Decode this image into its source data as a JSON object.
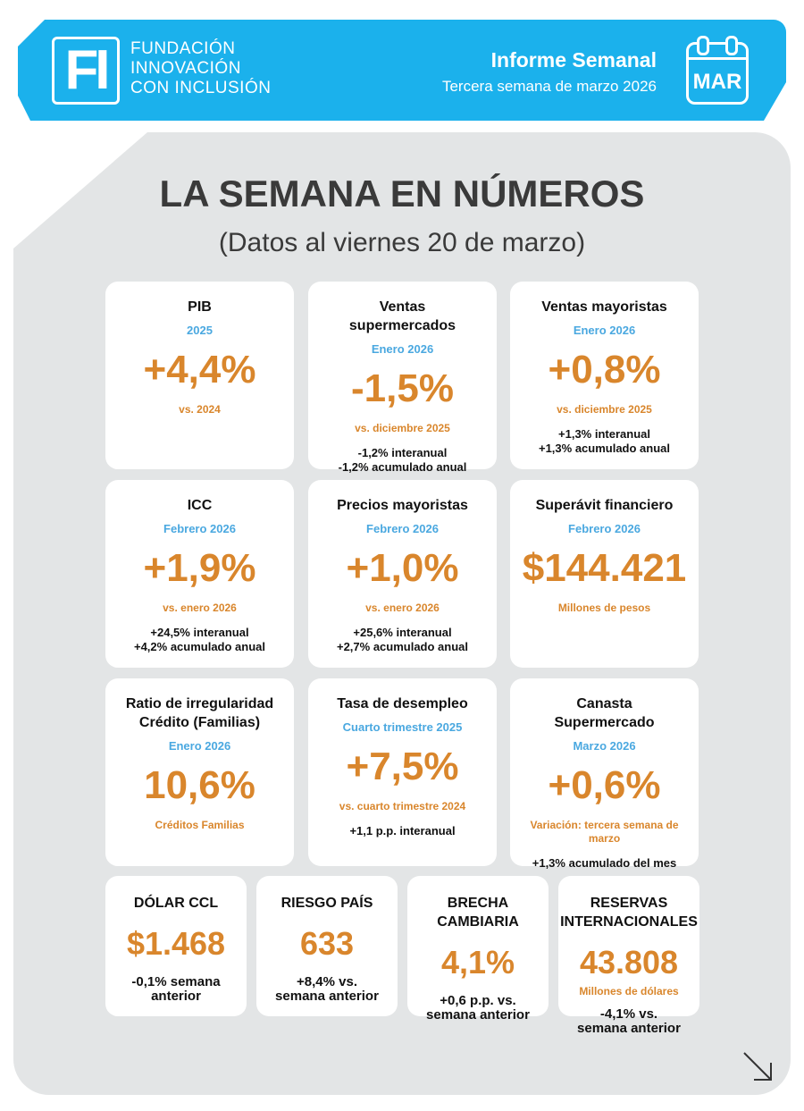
{
  "header": {
    "org_lines": [
      "FUNDACIÓN",
      "INNOVACIÓN",
      "CON INCLUSIÓN"
    ],
    "logo_text": "FI",
    "report_title": "Informe Semanal",
    "report_subtitle": "Tercera semana de marzo 2026",
    "calendar_month": "MAR",
    "brand_color": "#1bb1ec"
  },
  "main": {
    "title": "LA SEMANA EN NÚMEROS",
    "subtitle": "(Datos al viernes 20 de marzo)"
  },
  "colors": {
    "value": "#d9862c",
    "period": "#4aa8e0",
    "panel": "#e3e5e6"
  },
  "cards": [
    {
      "title": "PIB",
      "period": "2025",
      "value": "+4,4%",
      "note": "vs. 2024",
      "extra": []
    },
    {
      "title": "Ventas supermercados",
      "period": "Enero 2026",
      "value": "-1,5%",
      "note": "vs. diciembre 2025",
      "extra": [
        "-1,2% interanual",
        "-1,2% acumulado anual"
      ]
    },
    {
      "title": "Ventas mayoristas",
      "period": "Enero 2026",
      "value": "+0,8%",
      "note": "vs. diciembre 2025",
      "extra": [
        "+1,3% interanual",
        "+1,3% acumulado anual"
      ]
    },
    {
      "title": "ICC",
      "period": "Febrero 2026",
      "value": "+1,9%",
      "note": "vs. enero 2026",
      "extra": [
        "+24,5% interanual",
        "+4,2% acumulado anual"
      ]
    },
    {
      "title": "Precios mayoristas",
      "period": "Febrero 2026",
      "value": "+1,0%",
      "note": "vs. enero 2026",
      "extra": [
        "+25,6% interanual",
        "+2,7% acumulado anual"
      ]
    },
    {
      "title": "Superávit financiero",
      "period": "Febrero 2026",
      "value": "$144.421",
      "note": "Millones de pesos",
      "extra": []
    },
    {
      "title": "Ratio de irregularidad Crédito (Familias)",
      "period": "Enero 2026",
      "value": "10,6%",
      "note": "Créditos Familias",
      "extra": []
    },
    {
      "title": "Tasa de desempleo",
      "period": "Cuarto trimestre 2025",
      "value": "+7,5%",
      "note": "vs. cuarto trimestre 2024",
      "extra": [
        "+1,1 p.p. interanual"
      ]
    },
    {
      "title": "Canasta Supermercado",
      "period": "Marzo 2026",
      "value": "+0,6%",
      "note": "Variación: tercera semana de marzo",
      "extra": [
        "+1,3% acumulado del mes"
      ]
    }
  ],
  "small_cards": [
    {
      "title": "DÓLAR CCL",
      "value": "$1.468",
      "note": "",
      "extra": [
        "-0,1% semana anterior"
      ]
    },
    {
      "title": "RIESGO PAÍS",
      "value": "633",
      "note": "",
      "extra": [
        "+8,4% vs. semana anterior"
      ]
    },
    {
      "title": "BRECHA CAMBIARIA",
      "value": "4,1%",
      "note": "",
      "extra": [
        "+0,6 p.p. vs. semana anterior"
      ]
    },
    {
      "title": "RESERVAS INTERNACIONALES",
      "value": "43.808",
      "note": "Millones de dólares",
      "extra": [
        "-4,1% vs. semana anterior"
      ]
    }
  ]
}
